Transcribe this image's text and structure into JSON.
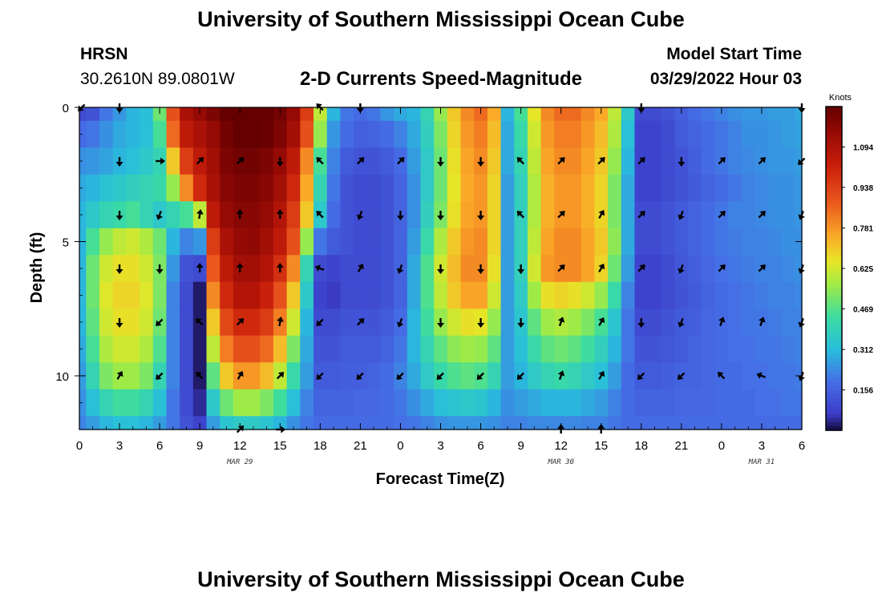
{
  "header": {
    "title": "University of Southern Mississippi Ocean Cube",
    "station": "HRSN",
    "coords": "30.2610N  89.0801W",
    "chart_title": "2-D Currents Speed-Magnitude",
    "model_start_label": "Model Start Time",
    "model_start_value": "03/29/2022 Hour 03"
  },
  "footer": {
    "title": "University of Southern Mississippi Ocean Cube"
  },
  "colors": {
    "low": "#3b4cc0",
    "high": "#7f0000",
    "arrow": "#000000"
  },
  "chart_data": {
    "type": "heatmap",
    "title": "2-D Currents Speed-Magnitude",
    "xlabel": "Forecast Time(Z)",
    "ylabel": "Depth (ft)",
    "x_tick_labels": [
      "0",
      "3",
      "6",
      "9",
      "12",
      "15",
      "18",
      "21",
      "0",
      "3",
      "6",
      "9",
      "12",
      "15",
      "18",
      "21",
      "0",
      "3",
      "6"
    ],
    "x_hours": [
      0,
      3,
      6,
      9,
      12,
      15,
      18,
      21,
      24,
      27,
      30,
      33,
      36,
      39,
      42,
      45,
      48,
      51,
      54
    ],
    "xlim": [
      0,
      54
    ],
    "date_labels": [
      {
        "label": "MAR 29",
        "hour": 12
      },
      {
        "label": "MAR 30",
        "hour": 36
      },
      {
        "label": "MAR 31",
        "hour": 51
      }
    ],
    "y_tick_labels": [
      "0",
      "5",
      "10"
    ],
    "y_ticks": [
      0,
      5,
      10
    ],
    "ylim": [
      0,
      12
    ],
    "colorbar": {
      "title": "Knots",
      "ticks": [
        "1.094",
        "0.938",
        "0.781",
        "0.625",
        "0.469",
        "0.312",
        "0.156"
      ],
      "tick_values": [
        1.094,
        0.938,
        0.781,
        0.625,
        0.469,
        0.312,
        0.156
      ],
      "range": [
        0,
        1.25
      ]
    },
    "time_hours": [
      0,
      1,
      2,
      3,
      4,
      5,
      6,
      7,
      8,
      9,
      10,
      11,
      12,
      13,
      14,
      15,
      16,
      17,
      18,
      19,
      20,
      21,
      22,
      23,
      24,
      25,
      26,
      27,
      28,
      29,
      30,
      31,
      32,
      33,
      34,
      35,
      36,
      37,
      38,
      39,
      40,
      41,
      42,
      43,
      44,
      45,
      46,
      47,
      48,
      49,
      50,
      51,
      52,
      53,
      54
    ],
    "depth_ft": [
      0,
      1,
      2,
      3,
      4,
      5,
      6,
      7,
      8,
      9,
      10,
      11,
      12
    ],
    "speed_knots": [
      [
        0.1,
        0.12,
        0.2,
        0.25,
        0.3,
        0.32,
        0.5,
        0.9,
        1.1,
        1.15,
        1.2,
        1.25,
        1.28,
        1.28,
        1.26,
        1.22,
        1.15,
        0.95,
        0.6,
        0.3,
        0.2,
        0.18,
        0.2,
        0.25,
        0.28,
        0.3,
        0.4,
        0.55,
        0.7,
        0.8,
        0.85,
        0.75,
        0.3,
        0.45,
        0.65,
        0.8,
        0.85,
        0.85,
        0.8,
        0.75,
        0.6,
        0.35,
        0.1,
        0.1,
        0.12,
        0.15,
        0.18,
        0.2,
        0.22,
        0.24,
        0.25,
        0.25,
        0.26,
        0.26,
        0.28
      ],
      [
        0.18,
        0.2,
        0.24,
        0.28,
        0.3,
        0.32,
        0.45,
        0.85,
        1.05,
        1.1,
        1.15,
        1.22,
        1.26,
        1.26,
        1.24,
        1.2,
        1.12,
        0.9,
        0.55,
        0.25,
        0.18,
        0.15,
        0.16,
        0.18,
        0.22,
        0.28,
        0.38,
        0.52,
        0.68,
        0.78,
        0.82,
        0.72,
        0.28,
        0.42,
        0.62,
        0.78,
        0.82,
        0.82,
        0.78,
        0.72,
        0.58,
        0.32,
        0.08,
        0.08,
        0.1,
        0.14,
        0.16,
        0.18,
        0.2,
        0.22,
        0.24,
        0.24,
        0.25,
        0.26,
        0.27
      ],
      [
        0.24,
        0.25,
        0.27,
        0.3,
        0.32,
        0.35,
        0.4,
        0.7,
        0.95,
        1.05,
        1.12,
        1.2,
        1.22,
        1.22,
        1.2,
        1.15,
        1.05,
        0.8,
        0.45,
        0.22,
        0.14,
        0.12,
        0.12,
        0.14,
        0.18,
        0.26,
        0.36,
        0.5,
        0.66,
        0.76,
        0.8,
        0.7,
        0.28,
        0.4,
        0.6,
        0.76,
        0.8,
        0.8,
        0.76,
        0.7,
        0.55,
        0.3,
        0.08,
        0.08,
        0.1,
        0.12,
        0.15,
        0.18,
        0.2,
        0.22,
        0.23,
        0.24,
        0.25,
        0.25,
        0.26
      ],
      [
        0.28,
        0.3,
        0.33,
        0.35,
        0.38,
        0.4,
        0.42,
        0.55,
        0.8,
        1.0,
        1.1,
        1.18,
        1.2,
        1.2,
        1.18,
        1.12,
        1.0,
        0.75,
        0.4,
        0.2,
        0.12,
        0.1,
        0.1,
        0.12,
        0.16,
        0.24,
        0.36,
        0.5,
        0.65,
        0.75,
        0.78,
        0.68,
        0.26,
        0.38,
        0.58,
        0.74,
        0.78,
        0.78,
        0.74,
        0.68,
        0.52,
        0.28,
        0.08,
        0.08,
        0.1,
        0.12,
        0.14,
        0.16,
        0.18,
        0.2,
        0.22,
        0.23,
        0.24,
        0.24,
        0.25
      ],
      [
        0.3,
        0.35,
        0.4,
        0.42,
        0.45,
        0.4,
        0.35,
        0.4,
        0.45,
        0.6,
        1.05,
        1.15,
        1.18,
        1.18,
        1.15,
        1.08,
        0.95,
        0.7,
        0.35,
        0.18,
        0.12,
        0.1,
        0.1,
        0.12,
        0.16,
        0.24,
        0.38,
        0.52,
        0.66,
        0.76,
        0.78,
        0.68,
        0.26,
        0.38,
        0.58,
        0.74,
        0.78,
        0.78,
        0.74,
        0.68,
        0.52,
        0.28,
        0.1,
        0.1,
        0.12,
        0.14,
        0.16,
        0.18,
        0.2,
        0.22,
        0.22,
        0.23,
        0.24,
        0.24,
        0.25
      ],
      [
        0.3,
        0.45,
        0.55,
        0.6,
        0.62,
        0.58,
        0.5,
        0.3,
        0.22,
        0.25,
        0.95,
        1.1,
        1.15,
        1.16,
        1.12,
        1.05,
        0.9,
        0.55,
        0.2,
        0.14,
        0.12,
        0.1,
        0.1,
        0.12,
        0.16,
        0.26,
        0.42,
        0.58,
        0.7,
        0.78,
        0.8,
        0.68,
        0.26,
        0.38,
        0.6,
        0.76,
        0.8,
        0.8,
        0.76,
        0.7,
        0.54,
        0.28,
        0.1,
        0.1,
        0.12,
        0.14,
        0.16,
        0.18,
        0.2,
        0.21,
        0.22,
        0.22,
        0.23,
        0.24,
        0.24
      ],
      [
        0.3,
        0.5,
        0.62,
        0.66,
        0.66,
        0.62,
        0.52,
        0.25,
        0.12,
        0.1,
        0.88,
        1.05,
        1.12,
        1.12,
        1.08,
        0.98,
        0.8,
        0.4,
        0.1,
        0.08,
        0.1,
        0.1,
        0.1,
        0.12,
        0.16,
        0.28,
        0.46,
        0.62,
        0.72,
        0.8,
        0.8,
        0.66,
        0.26,
        0.38,
        0.62,
        0.78,
        0.8,
        0.8,
        0.76,
        0.68,
        0.5,
        0.26,
        0.08,
        0.08,
        0.1,
        0.13,
        0.15,
        0.17,
        0.19,
        0.2,
        0.21,
        0.22,
        0.22,
        0.23,
        0.24
      ],
      [
        0.3,
        0.5,
        0.64,
        0.68,
        0.68,
        0.64,
        0.52,
        0.22,
        0.1,
        0.02,
        0.8,
        1.0,
        1.08,
        1.08,
        1.02,
        0.9,
        0.7,
        0.35,
        0.08,
        0.06,
        0.1,
        0.1,
        0.1,
        0.12,
        0.16,
        0.28,
        0.46,
        0.6,
        0.7,
        0.76,
        0.76,
        0.62,
        0.26,
        0.36,
        0.56,
        0.66,
        0.68,
        0.66,
        0.62,
        0.55,
        0.42,
        0.22,
        0.08,
        0.08,
        0.1,
        0.12,
        0.14,
        0.16,
        0.18,
        0.19,
        0.2,
        0.21,
        0.22,
        0.22,
        0.23
      ],
      [
        0.3,
        0.48,
        0.62,
        0.66,
        0.66,
        0.62,
        0.5,
        0.22,
        0.1,
        0.02,
        0.7,
        0.92,
        1.0,
        1.0,
        0.95,
        0.82,
        0.62,
        0.3,
        0.1,
        0.1,
        0.12,
        0.12,
        0.12,
        0.14,
        0.18,
        0.3,
        0.44,
        0.55,
        0.62,
        0.66,
        0.65,
        0.55,
        0.26,
        0.34,
        0.48,
        0.56,
        0.58,
        0.56,
        0.52,
        0.45,
        0.34,
        0.2,
        0.1,
        0.1,
        0.12,
        0.14,
        0.15,
        0.17,
        0.18,
        0.19,
        0.2,
        0.2,
        0.21,
        0.22,
        0.22
      ],
      [
        0.28,
        0.45,
        0.58,
        0.62,
        0.62,
        0.58,
        0.46,
        0.22,
        0.1,
        0.02,
        0.6,
        0.82,
        0.9,
        0.9,
        0.85,
        0.72,
        0.52,
        0.28,
        0.12,
        0.12,
        0.14,
        0.14,
        0.14,
        0.16,
        0.2,
        0.3,
        0.4,
        0.48,
        0.54,
        0.56,
        0.55,
        0.48,
        0.26,
        0.32,
        0.42,
        0.48,
        0.5,
        0.48,
        0.44,
        0.38,
        0.3,
        0.2,
        0.12,
        0.12,
        0.13,
        0.14,
        0.16,
        0.17,
        0.18,
        0.19,
        0.19,
        0.2,
        0.2,
        0.21,
        0.22
      ],
      [
        0.26,
        0.4,
        0.52,
        0.56,
        0.56,
        0.52,
        0.4,
        0.22,
        0.1,
        0.02,
        0.48,
        0.7,
        0.78,
        0.78,
        0.72,
        0.6,
        0.42,
        0.26,
        0.14,
        0.14,
        0.15,
        0.15,
        0.16,
        0.18,
        0.22,
        0.28,
        0.36,
        0.42,
        0.46,
        0.48,
        0.46,
        0.4,
        0.26,
        0.3,
        0.36,
        0.4,
        0.42,
        0.4,
        0.36,
        0.32,
        0.26,
        0.18,
        0.14,
        0.14,
        0.15,
        0.16,
        0.16,
        0.17,
        0.18,
        0.18,
        0.19,
        0.19,
        0.2,
        0.2,
        0.21
      ],
      [
        0.24,
        0.32,
        0.4,
        0.44,
        0.44,
        0.4,
        0.32,
        0.2,
        0.1,
        0.04,
        0.35,
        0.5,
        0.56,
        0.56,
        0.52,
        0.44,
        0.32,
        0.22,
        0.16,
        0.16,
        0.16,
        0.17,
        0.17,
        0.18,
        0.2,
        0.24,
        0.28,
        0.32,
        0.34,
        0.35,
        0.34,
        0.3,
        0.24,
        0.26,
        0.28,
        0.3,
        0.3,
        0.3,
        0.28,
        0.26,
        0.22,
        0.18,
        0.16,
        0.16,
        0.16,
        0.17,
        0.17,
        0.17,
        0.18,
        0.18,
        0.18,
        0.19,
        0.19,
        0.2,
        0.2
      ],
      [
        0.22,
        0.26,
        0.3,
        0.32,
        0.32,
        0.3,
        0.26,
        0.2,
        0.12,
        0.08,
        0.26,
        0.34,
        0.36,
        0.36,
        0.34,
        0.3,
        0.24,
        0.2,
        0.18,
        0.18,
        0.18,
        0.18,
        0.18,
        0.18,
        0.19,
        0.2,
        0.22,
        0.24,
        0.25,
        0.25,
        0.25,
        0.24,
        0.22,
        0.22,
        0.23,
        0.23,
        0.23,
        0.23,
        0.22,
        0.22,
        0.2,
        0.18,
        0.18,
        0.18,
        0.18,
        0.18,
        0.18,
        0.18,
        0.18,
        0.18,
        0.18,
        0.18,
        0.18,
        0.18,
        0.18
      ]
    ],
    "arrow_hours": [
      0,
      3,
      6,
      9,
      12,
      15,
      18,
      21,
      24,
      27,
      30,
      33,
      36,
      39,
      42,
      45,
      48,
      51,
      54
    ],
    "arrow_depths_ft": [
      0,
      2,
      4,
      6,
      8,
      10,
      12
    ],
    "arrow_directions_deg": [
      [
        225,
        270,
        null,
        null,
        null,
        null,
        135,
        270,
        null,
        null,
        null,
        null,
        null,
        null,
        270,
        null,
        null,
        null,
        270
      ],
      [
        null,
        270,
        0,
        45,
        45,
        270,
        135,
        45,
        45,
        270,
        270,
        135,
        45,
        45,
        45,
        270,
        45,
        45,
        225
      ],
      [
        null,
        270,
        250,
        80,
        90,
        90,
        135,
        250,
        270,
        270,
        270,
        135,
        45,
        60,
        45,
        250,
        45,
        45,
        250
      ],
      [
        null,
        270,
        270,
        90,
        90,
        90,
        160,
        60,
        250,
        270,
        270,
        270,
        45,
        60,
        45,
        250,
        45,
        45,
        250
      ],
      [
        null,
        270,
        225,
        135,
        45,
        80,
        225,
        45,
        250,
        270,
        270,
        270,
        70,
        60,
        270,
        250,
        70,
        70,
        250
      ],
      [
        null,
        60,
        225,
        135,
        60,
        45,
        225,
        225,
        225,
        225,
        225,
        225,
        70,
        60,
        225,
        225,
        135,
        160,
        250
      ],
      [
        null,
        null,
        null,
        null,
        45,
        0,
        null,
        null,
        null,
        null,
        null,
        null,
        90,
        90,
        null,
        null,
        null,
        null,
        null
      ]
    ]
  }
}
